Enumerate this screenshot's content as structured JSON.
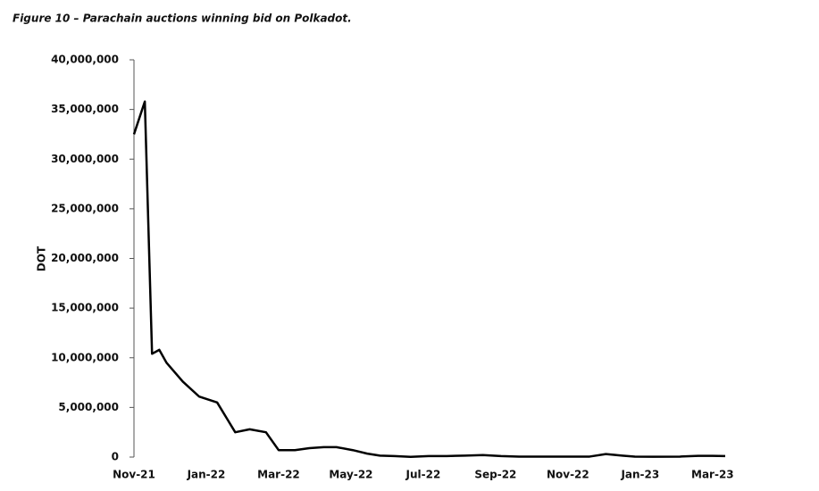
{
  "chart_data": {
    "type": "line",
    "title": "Figure 10 – Parachain auctions winning bid on Polkadot.",
    "y_label": "DOT",
    "x": [
      0,
      0.3,
      0.5,
      0.7,
      0.9,
      1.35,
      1.8,
      2.3,
      2.8,
      3.2,
      3.65,
      4.0,
      4.45,
      4.85,
      5.25,
      5.6,
      6.05,
      6.45,
      6.8,
      7.2,
      7.65,
      8.15,
      8.65,
      9.15,
      9.65,
      10.15,
      10.65,
      11.15,
      11.6,
      12.1,
      12.6,
      13.05,
      13.5,
      13.85,
      14.35,
      15.1,
      15.6,
      16.0,
      16.35
    ],
    "series": [
      {
        "name": "Winning bid",
        "color": "#000000",
        "values": [
          32500000,
          35800000,
          10400000,
          10800000,
          9500000,
          7600000,
          6100000,
          5500000,
          2500000,
          2800000,
          2500000,
          700000,
          700000,
          900000,
          1000000,
          1000000,
          700000,
          350000,
          150000,
          100000,
          20000,
          100000,
          100000,
          150000,
          200000,
          100000,
          50000,
          50000,
          50000,
          50000,
          50000,
          300000,
          150000,
          50000,
          30000,
          50000,
          120000,
          120000,
          100000
        ]
      }
    ],
    "xlim": [
      0,
      16.35
    ],
    "xticks": [
      {
        "value": 0,
        "label": "Nov-21"
      },
      {
        "value": 2,
        "label": "Jan-22"
      },
      {
        "value": 4,
        "label": "Mar-22"
      },
      {
        "value": 6,
        "label": "May-22"
      },
      {
        "value": 8,
        "label": "Jul-22"
      },
      {
        "value": 10,
        "label": "Sep-22"
      },
      {
        "value": 12,
        "label": "Nov-22"
      },
      {
        "value": 14,
        "label": "Jan-23"
      },
      {
        "value": 16,
        "label": "Mar-23"
      }
    ],
    "ylim": [
      0,
      40000000
    ],
    "yticks": [
      0,
      {
        "value": 5000000,
        "label": "5,000,000"
      },
      {
        "value": 10000000,
        "label": "10,000,000"
      },
      {
        "value": 15000000,
        "label": "15,000,000"
      },
      {
        "value": 20000000,
        "label": "20,000,000"
      },
      {
        "value": 25000000,
        "label": "25,000,000"
      },
      {
        "value": 30000000,
        "label": "30,000,000"
      },
      {
        "value": 35000000,
        "label": "35,000,000"
      },
      {
        "value": 40000000,
        "label": "40,000,000"
      }
    ],
    "grid": false
  }
}
